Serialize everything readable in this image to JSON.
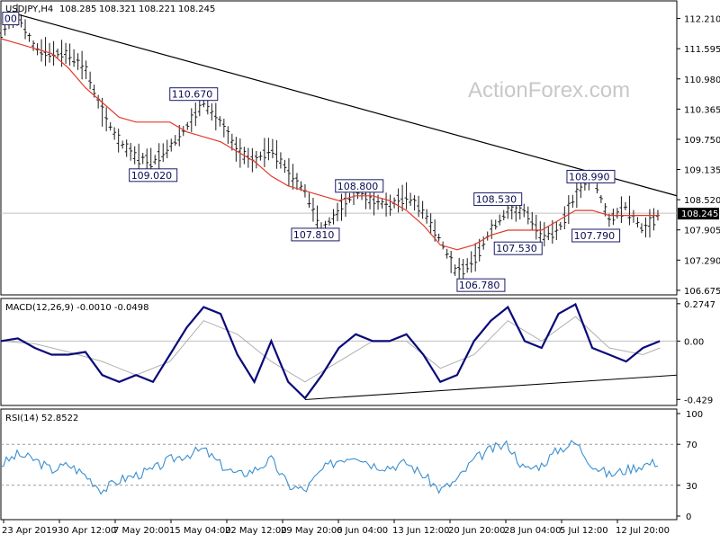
{
  "chart_data": [
    {
      "type": "candlestick",
      "title": "USDJPY,H4",
      "ohlc": {
        "open": "108.285",
        "high": "108.321",
        "low": "108.221",
        "close": "108.245"
      },
      "watermark": "ActionForex.com",
      "current_price_label": "108.245",
      "ylim": [
        106.6,
        112.55
      ],
      "y_ticks": [
        "112.210",
        "111.595",
        "110.980",
        "110.365",
        "109.750",
        "109.135",
        "108.520",
        "107.905",
        "107.290",
        "106.675"
      ],
      "close_path": [
        [
          0,
          111.9
        ],
        [
          10,
          112.3
        ],
        [
          20,
          111.6
        ],
        [
          30,
          111.5
        ],
        [
          40,
          111.5
        ],
        [
          50,
          111.2
        ],
        [
          60,
          110.3
        ],
        [
          70,
          109.7
        ],
        [
          80,
          109.4
        ],
        [
          90,
          109.3
        ],
        [
          100,
          109.6
        ],
        [
          110,
          110.0
        ],
        [
          120,
          110.5
        ],
        [
          130,
          110.1
        ],
        [
          140,
          109.5
        ],
        [
          150,
          109.3
        ],
        [
          160,
          109.6
        ],
        [
          170,
          109.1
        ],
        [
          180,
          108.7
        ],
        [
          190,
          107.9
        ],
        [
          200,
          108.3
        ],
        [
          210,
          108.7
        ],
        [
          220,
          108.5
        ],
        [
          230,
          108.4
        ],
        [
          240,
          108.6
        ],
        [
          250,
          108.3
        ],
        [
          260,
          107.7
        ],
        [
          270,
          107.0
        ],
        [
          280,
          107.3
        ],
        [
          290,
          107.9
        ],
        [
          300,
          108.3
        ],
        [
          310,
          108.3
        ],
        [
          320,
          107.8
        ],
        [
          330,
          107.9
        ],
        [
          340,
          108.6
        ],
        [
          350,
          109.0
        ],
        [
          360,
          108.1
        ],
        [
          370,
          108.4
        ],
        [
          380,
          107.9
        ],
        [
          390,
          108.245
        ]
      ],
      "ma_path": [
        [
          0,
          111.8
        ],
        [
          10,
          111.7
        ],
        [
          20,
          111.6
        ],
        [
          30,
          111.5
        ],
        [
          40,
          111.2
        ],
        [
          50,
          110.8
        ],
        [
          60,
          110.5
        ],
        [
          70,
          110.2
        ],
        [
          80,
          110.1
        ],
        [
          90,
          110.1
        ],
        [
          100,
          110.1
        ],
        [
          110,
          109.9
        ],
        [
          120,
          109.8
        ],
        [
          130,
          109.7
        ],
        [
          140,
          109.5
        ],
        [
          150,
          109.3
        ],
        [
          160,
          109.0
        ],
        [
          170,
          108.8
        ],
        [
          180,
          108.7
        ],
        [
          190,
          108.6
        ],
        [
          200,
          108.5
        ],
        [
          210,
          108.6
        ],
        [
          220,
          108.6
        ],
        [
          230,
          108.5
        ],
        [
          240,
          108.3
        ],
        [
          250,
          108.0
        ],
        [
          260,
          107.6
        ],
        [
          270,
          107.5
        ],
        [
          280,
          107.6
        ],
        [
          290,
          107.8
        ],
        [
          300,
          107.9
        ],
        [
          310,
          107.9
        ],
        [
          320,
          107.9
        ],
        [
          330,
          108.1
        ],
        [
          340,
          108.3
        ],
        [
          350,
          108.3
        ],
        [
          360,
          108.2
        ],
        [
          370,
          108.2
        ],
        [
          380,
          108.2
        ],
        [
          390,
          108.2
        ]
      ],
      "trendline": [
        [
          4,
          112.35
        ],
        [
          400,
          108.6
        ]
      ],
      "annotations": [
        {
          "text": "110.670",
          "x": 100,
          "y": 110.67
        },
        {
          "text": "109.020",
          "x": 76,
          "y": 109.02
        },
        {
          "text": "108.800",
          "x": 198,
          "y": 108.8
        },
        {
          "text": "107.810",
          "x": 172,
          "y": 107.81
        },
        {
          "text": "108.530",
          "x": 280,
          "y": 108.53
        },
        {
          "text": "107.530",
          "x": 292,
          "y": 107.53
        },
        {
          "text": "106.780",
          "x": 270,
          "y": 106.78
        },
        {
          "text": "108.990",
          "x": 335,
          "y": 108.99
        },
        {
          "text": "107.790",
          "x": 338,
          "y": 107.79
        },
        {
          "text": "00",
          "x": 1,
          "y": 112.21
        }
      ]
    },
    {
      "type": "line",
      "title": "MACD(12,26,9) -0.0010 -0.0498",
      "ylim": [
        -0.46,
        0.3
      ],
      "y_ticks": [
        "0.2747",
        "0.00",
        "-0.429"
      ],
      "current_label": "0.00",
      "macd_path": [
        [
          0,
          0.0
        ],
        [
          10,
          0.02
        ],
        [
          20,
          -0.05
        ],
        [
          30,
          -0.1
        ],
        [
          40,
          -0.1
        ],
        [
          50,
          -0.08
        ],
        [
          60,
          -0.25
        ],
        [
          70,
          -0.3
        ],
        [
          80,
          -0.25
        ],
        [
          90,
          -0.3
        ],
        [
          100,
          -0.1
        ],
        [
          110,
          0.1
        ],
        [
          120,
          0.25
        ],
        [
          130,
          0.2
        ],
        [
          140,
          -0.1
        ],
        [
          150,
          -0.3
        ],
        [
          160,
          0.0
        ],
        [
          170,
          -0.3
        ],
        [
          180,
          -0.42
        ],
        [
          190,
          -0.25
        ],
        [
          200,
          -0.05
        ],
        [
          210,
          0.05
        ],
        [
          220,
          0.0
        ],
        [
          230,
          0.0
        ],
        [
          240,
          0.05
        ],
        [
          250,
          -0.1
        ],
        [
          260,
          -0.3
        ],
        [
          270,
          -0.25
        ],
        [
          280,
          0.0
        ],
        [
          290,
          0.15
        ],
        [
          300,
          0.25
        ],
        [
          310,
          0.0
        ],
        [
          320,
          -0.05
        ],
        [
          330,
          0.2
        ],
        [
          340,
          0.27
        ],
        [
          350,
          -0.05
        ],
        [
          360,
          -0.1
        ],
        [
          370,
          -0.15
        ],
        [
          380,
          -0.05
        ],
        [
          390,
          0.0
        ]
      ],
      "signal_path": [
        [
          0,
          0.0
        ],
        [
          20,
          -0.02
        ],
        [
          40,
          -0.08
        ],
        [
          60,
          -0.15
        ],
        [
          80,
          -0.25
        ],
        [
          100,
          -0.15
        ],
        [
          120,
          0.15
        ],
        [
          140,
          0.05
        ],
        [
          160,
          -0.15
        ],
        [
          180,
          -0.3
        ],
        [
          200,
          -0.15
        ],
        [
          220,
          0.0
        ],
        [
          240,
          0.0
        ],
        [
          260,
          -0.2
        ],
        [
          280,
          -0.1
        ],
        [
          300,
          0.15
        ],
        [
          320,
          0.0
        ],
        [
          340,
          0.18
        ],
        [
          360,
          -0.05
        ],
        [
          380,
          -0.1
        ],
        [
          390,
          -0.05
        ]
      ],
      "trendline": [
        [
          180,
          -0.43
        ],
        [
          400,
          -0.25
        ]
      ]
    },
    {
      "type": "line",
      "title": "RSI(14) 52.8522",
      "ylim": [
        0,
        100
      ],
      "y_ticks": [
        "100",
        "70",
        "30",
        "0"
      ],
      "levels": [
        70,
        30
      ],
      "rsi_path": [
        [
          0,
          50
        ],
        [
          10,
          60
        ],
        [
          20,
          55
        ],
        [
          30,
          45
        ],
        [
          40,
          50
        ],
        [
          50,
          40
        ],
        [
          60,
          25
        ],
        [
          70,
          35
        ],
        [
          80,
          40
        ],
        [
          90,
          45
        ],
        [
          100,
          55
        ],
        [
          110,
          60
        ],
        [
          120,
          65
        ],
        [
          130,
          50
        ],
        [
          140,
          40
        ],
        [
          150,
          45
        ],
        [
          160,
          55
        ],
        [
          170,
          30
        ],
        [
          180,
          25
        ],
        [
          190,
          45
        ],
        [
          200,
          55
        ],
        [
          210,
          60
        ],
        [
          220,
          50
        ],
        [
          230,
          48
        ],
        [
          240,
          52
        ],
        [
          250,
          40
        ],
        [
          260,
          25
        ],
        [
          270,
          35
        ],
        [
          280,
          55
        ],
        [
          290,
          65
        ],
        [
          300,
          70
        ],
        [
          310,
          45
        ],
        [
          320,
          50
        ],
        [
          330,
          65
        ],
        [
          340,
          72
        ],
        [
          350,
          50
        ],
        [
          360,
          40
        ],
        [
          370,
          45
        ],
        [
          380,
          50
        ],
        [
          390,
          53
        ]
      ]
    }
  ],
  "x_axis_labels": [
    "23 Apr 2019",
    "30 Apr 12:00",
    "7 May 20:00",
    "15 May 04:00",
    "22 May 12:00",
    "29 May 20:00",
    "6 Jun 04:00",
    "13 Jun 12:00",
    "20 Jun 20:00",
    "28 Jun 04:00",
    "5 Jul 12:00",
    "12 Jul 20:00"
  ],
  "colors": {
    "candle": "#1a1a1a",
    "ma": "#e23a2a",
    "macd": "#0a0a7a",
    "signal": "#b0b0b0",
    "rsi": "#3a8fd0",
    "trend": "#000000"
  }
}
